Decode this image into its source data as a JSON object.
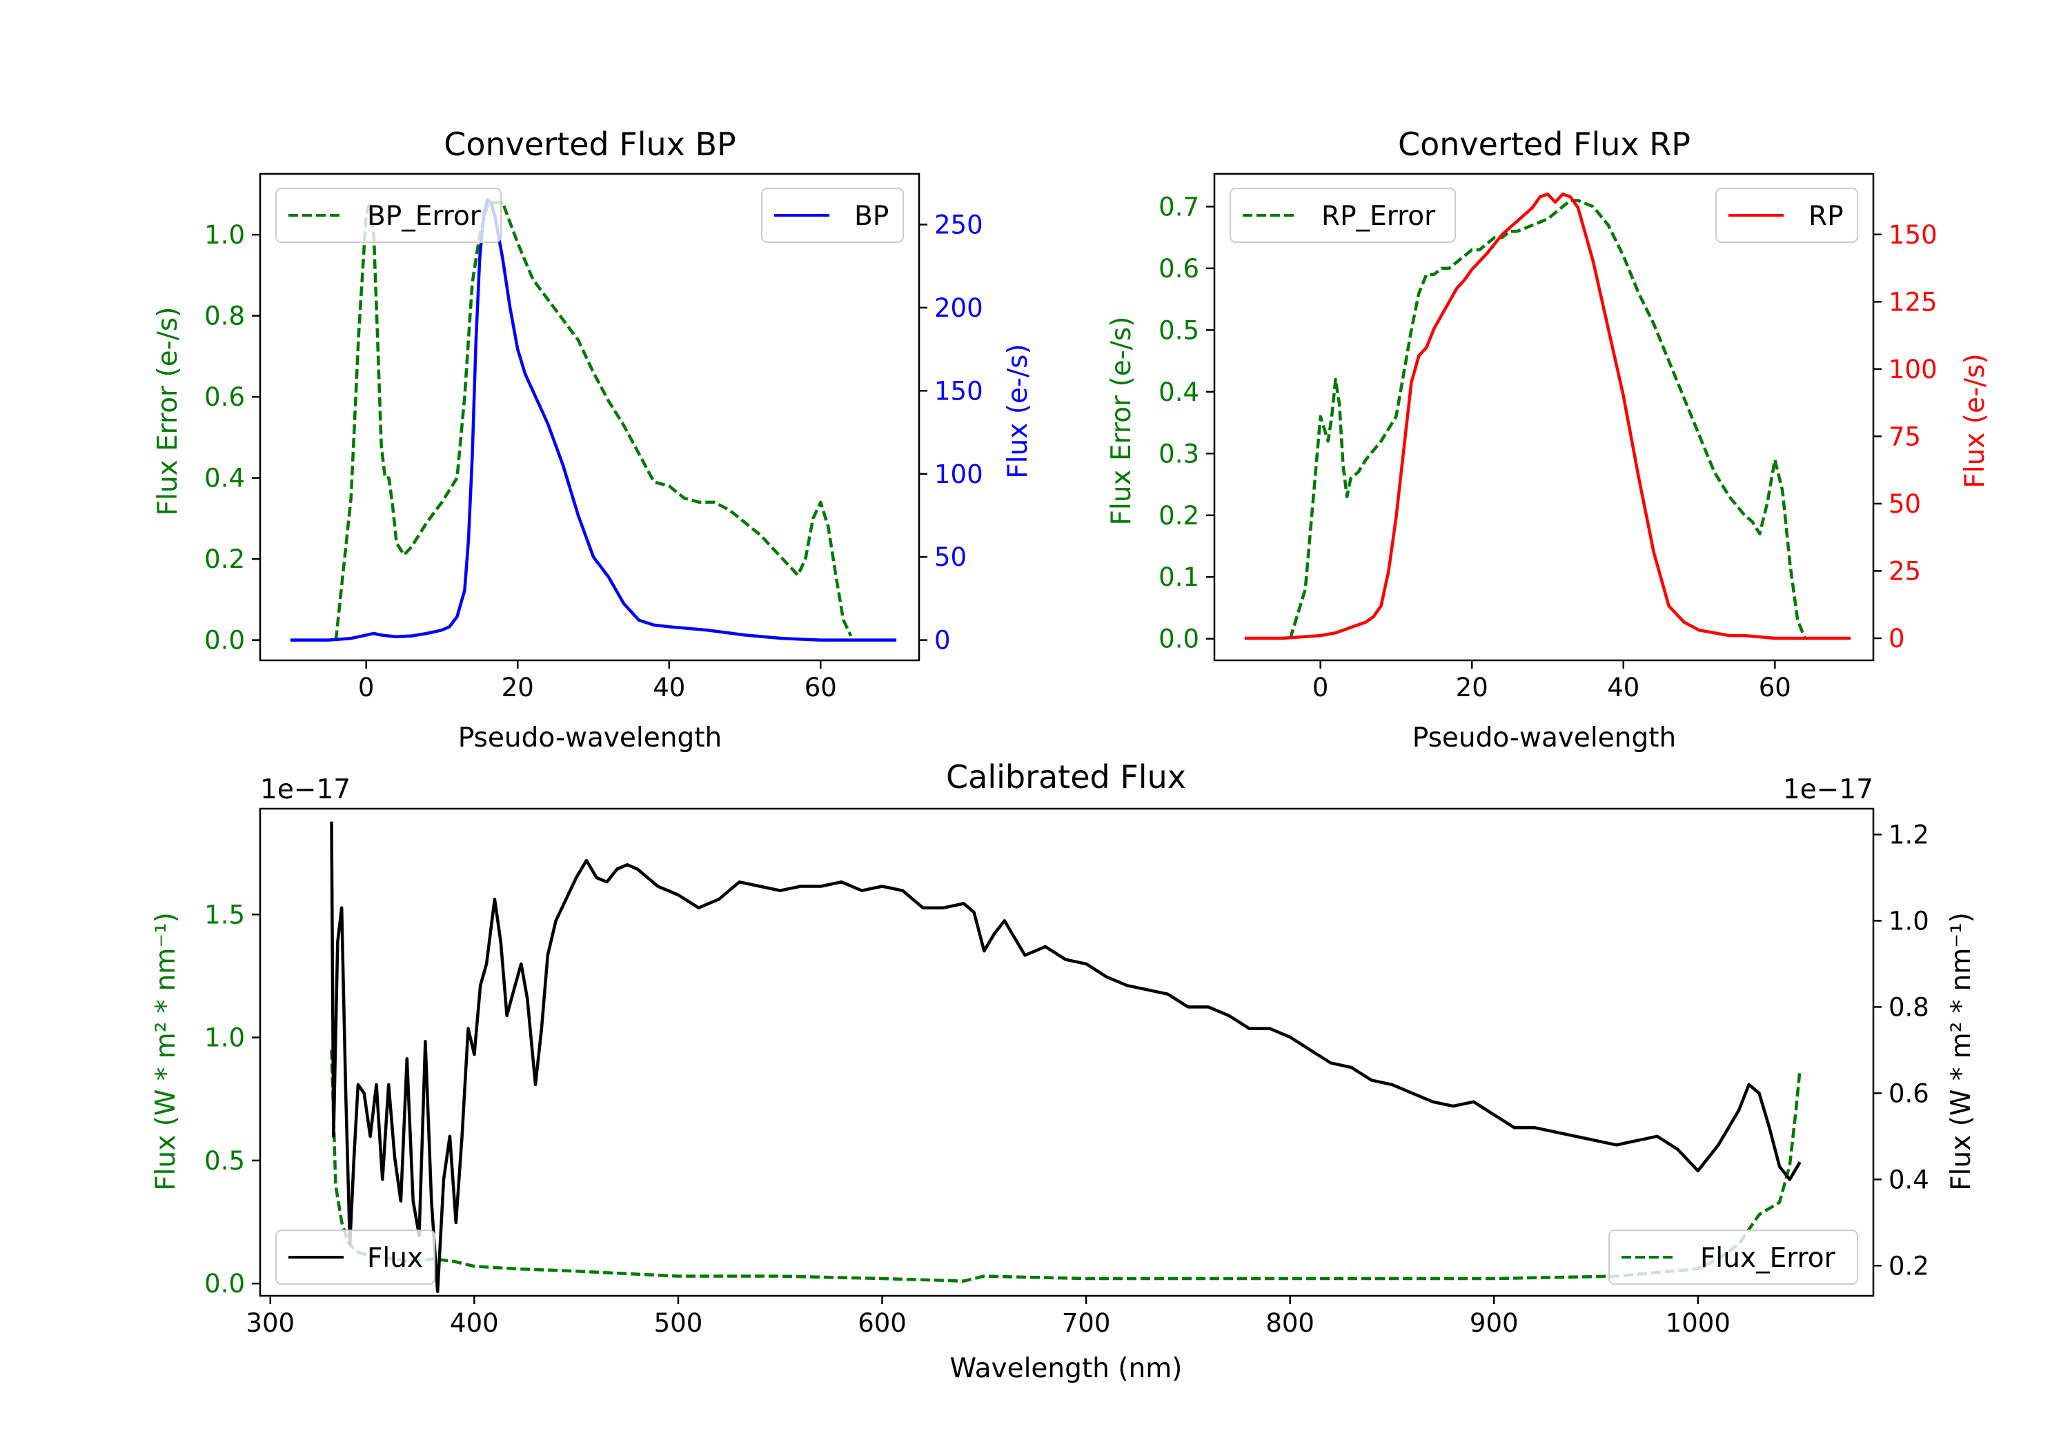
{
  "colors": {
    "error_green": "#007a00",
    "bp_blue": "#0000ff",
    "rp_red": "#ff0000",
    "flux_black": "#000000",
    "axis_black": "#000000",
    "background": "#ffffff"
  },
  "chart_data": [
    {
      "id": "bp",
      "type": "line",
      "title": "Converted Flux BP",
      "xlabel": "Pseudo-wavelength",
      "ylabel_left": "Flux Error (e-/s)",
      "ylabel_right": "Flux (e-/s)",
      "xlim": [
        -14,
        73
      ],
      "ylim_left": [
        -0.05,
        1.15
      ],
      "ylim_right": [
        -12.2,
        280.5
      ],
      "xticks": [
        0,
        20,
        40,
        60
      ],
      "yticks_left": [
        0.0,
        0.2,
        0.4,
        0.6,
        0.8,
        1.0
      ],
      "yticks_right": [
        0,
        50,
        100,
        150,
        200,
        250
      ],
      "legend_left": {
        "label": "BP_Error",
        "placement": "upper left"
      },
      "legend_right": {
        "label": "BP",
        "placement": "upper right"
      },
      "series": [
        {
          "name": "BP_Error",
          "axis": "left",
          "style": "dashed",
          "color": "#007a00",
          "x": [
            -4,
            -2,
            -1,
            0,
            0.5,
            1,
            1.5,
            2,
            2.5,
            3,
            3.5,
            4,
            5,
            6,
            8,
            10,
            12,
            13,
            14,
            15,
            16,
            17,
            18,
            19,
            20,
            22,
            24,
            26,
            28,
            30,
            32,
            34,
            36,
            38,
            40,
            42,
            44,
            46,
            48,
            50,
            52,
            54,
            56,
            57,
            58,
            59,
            60,
            61,
            62,
            63,
            64
          ],
          "y": [
            0.0,
            0.35,
            0.75,
            1.05,
            1.08,
            1.0,
            0.75,
            0.48,
            0.4,
            0.4,
            0.33,
            0.24,
            0.21,
            0.23,
            0.29,
            0.34,
            0.4,
            0.6,
            0.88,
            1.0,
            1.07,
            1.08,
            1.08,
            1.03,
            0.98,
            0.89,
            0.84,
            0.79,
            0.74,
            0.66,
            0.59,
            0.53,
            0.46,
            0.39,
            0.38,
            0.35,
            0.34,
            0.34,
            0.32,
            0.29,
            0.26,
            0.22,
            0.18,
            0.16,
            0.2,
            0.3,
            0.34,
            0.28,
            0.16,
            0.05,
            0.01
          ]
        },
        {
          "name": "BP",
          "axis": "right",
          "style": "solid",
          "color": "#0000ff",
          "x": [
            -10,
            -5,
            -2,
            0,
            1,
            2,
            3,
            4,
            6,
            8,
            10,
            11,
            12,
            13,
            13.5,
            14,
            14.5,
            15,
            15.5,
            16,
            16.5,
            17,
            18,
            19,
            20,
            21,
            22,
            24,
            26,
            28,
            30,
            32,
            34,
            36,
            38,
            40,
            45,
            50,
            55,
            60,
            65,
            70
          ],
          "y": [
            0,
            0,
            1,
            3,
            4,
            3,
            2.5,
            2,
            2.5,
            4,
            6,
            8,
            14,
            30,
            60,
            110,
            180,
            230,
            255,
            265,
            263,
            255,
            230,
            200,
            175,
            160,
            150,
            130,
            105,
            75,
            50,
            38,
            22,
            12,
            9,
            8,
            6,
            3,
            1,
            0,
            0,
            0
          ]
        }
      ]
    },
    {
      "id": "rp",
      "type": "line",
      "title": "Converted Flux RP",
      "xlabel": "Pseudo-wavelength",
      "ylabel_left": "Flux Error (e-/s)",
      "ylabel_right": "Flux (e-/s)",
      "xlim": [
        -14,
        73
      ],
      "ylim_left": [
        -0.035,
        0.753
      ],
      "ylim_right": [
        -8.2,
        172.5
      ],
      "xticks": [
        0,
        20,
        40,
        60
      ],
      "yticks_left": [
        0.0,
        0.1,
        0.2,
        0.3,
        0.4,
        0.5,
        0.6,
        0.7
      ],
      "yticks_right": [
        0,
        25,
        50,
        75,
        100,
        125,
        150
      ],
      "legend_left": {
        "label": "RP_Error",
        "placement": "upper left"
      },
      "legend_right": {
        "label": "RP",
        "placement": "upper right"
      },
      "series": [
        {
          "name": "RP_Error",
          "axis": "left",
          "style": "dashed",
          "color": "#007a00",
          "x": [
            -4,
            -2,
            -1,
            0,
            0.5,
            1,
            1.5,
            2,
            2.5,
            3,
            3.5,
            4,
            5,
            6,
            8,
            10,
            11,
            12,
            13,
            14,
            15,
            16,
            17,
            18,
            19,
            20,
            21,
            22,
            23,
            24,
            25,
            26,
            28,
            30,
            31,
            32,
            33,
            34,
            36,
            38,
            40,
            42,
            44,
            46,
            48,
            50,
            52,
            54,
            56,
            57,
            58,
            59,
            60,
            61,
            62,
            63,
            64
          ],
          "y": [
            0.0,
            0.08,
            0.22,
            0.36,
            0.34,
            0.32,
            0.36,
            0.42,
            0.38,
            0.28,
            0.23,
            0.26,
            0.27,
            0.29,
            0.32,
            0.36,
            0.43,
            0.5,
            0.56,
            0.59,
            0.59,
            0.6,
            0.6,
            0.61,
            0.62,
            0.63,
            0.63,
            0.64,
            0.65,
            0.65,
            0.66,
            0.66,
            0.67,
            0.68,
            0.69,
            0.7,
            0.71,
            0.71,
            0.7,
            0.67,
            0.62,
            0.56,
            0.51,
            0.45,
            0.39,
            0.33,
            0.27,
            0.23,
            0.2,
            0.19,
            0.17,
            0.22,
            0.29,
            0.24,
            0.12,
            0.03,
            0.0
          ]
        },
        {
          "name": "RP",
          "axis": "right",
          "style": "solid",
          "color": "#ff0000",
          "x": [
            -10,
            -5,
            0,
            2,
            4,
            6,
            7,
            8,
            9,
            10,
            11,
            12,
            12.5,
            13,
            14,
            15,
            16,
            17,
            18,
            19,
            20,
            22,
            24,
            26,
            28,
            29,
            30,
            31,
            32,
            33,
            34,
            35,
            36,
            38,
            40,
            42,
            44,
            46,
            48,
            50,
            52,
            54,
            56,
            60,
            65,
            70
          ],
          "y": [
            0,
            0,
            1,
            2,
            4,
            6,
            8,
            12,
            25,
            45,
            70,
            95,
            100,
            105,
            108,
            115,
            120,
            125,
            130,
            133,
            137,
            143,
            150,
            155,
            160,
            164,
            165,
            162,
            165,
            164,
            160,
            150,
            140,
            115,
            90,
            60,
            32,
            12,
            6,
            3,
            2,
            1,
            1,
            0,
            0,
            0
          ]
        }
      ]
    },
    {
      "id": "calibrated",
      "type": "line",
      "title": "Calibrated Flux",
      "xlabel": "Wavelength (nm)",
      "ylabel_left": "Flux (W * m² * nm⁻¹)",
      "ylabel_right": "Flux (W * m² * nm⁻¹)",
      "offset_left": "1e−17",
      "offset_right": "1e−17",
      "xlim": [
        295,
        1086
      ],
      "ylim_left": [
        -0.05,
        1.93
      ],
      "ylim_right": [
        0.13,
        1.26
      ],
      "xticks": [
        300,
        400,
        500,
        600,
        700,
        800,
        900,
        1000
      ],
      "yticks_left": [
        0.0,
        0.5,
        1.0,
        1.5
      ],
      "yticks_right": [
        0.2,
        0.4,
        0.6,
        0.8,
        1.0,
        1.2
      ],
      "legend_left": {
        "label": "Flux",
        "placement": "lower left"
      },
      "legend_right": {
        "label": "Flux_Error",
        "placement": "lower right"
      },
      "series": [
        {
          "name": "Flux_Error",
          "axis": "left",
          "style": "dashed",
          "color": "#007a00",
          "x": [
            330,
            332,
            335,
            338,
            342,
            350,
            360,
            370,
            380,
            390,
            400,
            420,
            450,
            500,
            550,
            600,
            640,
            650,
            700,
            800,
            900,
            960,
            1000,
            1010,
            1020,
            1030,
            1040,
            1045,
            1048,
            1050
          ],
          "y": [
            0.95,
            0.4,
            0.25,
            0.17,
            0.13,
            0.11,
            0.1,
            0.09,
            0.1,
            0.09,
            0.07,
            0.06,
            0.05,
            0.03,
            0.03,
            0.02,
            0.01,
            0.03,
            0.02,
            0.02,
            0.02,
            0.03,
            0.06,
            0.1,
            0.16,
            0.28,
            0.33,
            0.48,
            0.7,
            0.87
          ]
        },
        {
          "name": "Flux",
          "axis": "right",
          "style": "solid",
          "color": "#000000",
          "x": [
            330,
            331,
            333,
            335,
            337,
            339,
            341,
            343,
            346,
            349,
            352,
            355,
            358,
            361,
            364,
            367,
            370,
            373,
            376,
            379,
            382,
            385,
            388,
            391,
            394,
            397,
            400,
            403,
            406,
            410,
            413,
            416,
            420,
            423,
            426,
            430,
            433,
            436,
            440,
            445,
            450,
            455,
            460,
            465,
            470,
            475,
            480,
            490,
            500,
            510,
            520,
            530,
            540,
            550,
            560,
            570,
            580,
            590,
            600,
            610,
            620,
            630,
            640,
            645,
            650,
            655,
            660,
            665,
            670,
            680,
            690,
            700,
            710,
            720,
            730,
            740,
            750,
            760,
            770,
            780,
            790,
            800,
            810,
            820,
            830,
            840,
            850,
            860,
            870,
            880,
            890,
            900,
            910,
            920,
            930,
            940,
            950,
            960,
            970,
            980,
            990,
            1000,
            1010,
            1020,
            1025,
            1030,
            1035,
            1040,
            1045,
            1050
          ],
          "y": [
            1.23,
            0.5,
            0.95,
            1.03,
            0.6,
            0.25,
            0.45,
            0.62,
            0.6,
            0.5,
            0.62,
            0.4,
            0.62,
            0.45,
            0.35,
            0.68,
            0.35,
            0.27,
            0.72,
            0.35,
            0.14,
            0.4,
            0.5,
            0.3,
            0.5,
            0.75,
            0.69,
            0.85,
            0.9,
            1.05,
            0.95,
            0.78,
            0.85,
            0.9,
            0.82,
            0.62,
            0.75,
            0.92,
            1.0,
            1.05,
            1.1,
            1.14,
            1.1,
            1.09,
            1.12,
            1.13,
            1.12,
            1.08,
            1.06,
            1.03,
            1.05,
            1.09,
            1.08,
            1.07,
            1.08,
            1.08,
            1.09,
            1.07,
            1.08,
            1.07,
            1.03,
            1.03,
            1.04,
            1.02,
            0.93,
            0.97,
            1.0,
            0.96,
            0.92,
            0.94,
            0.91,
            0.9,
            0.87,
            0.85,
            0.84,
            0.83,
            0.8,
            0.8,
            0.78,
            0.75,
            0.75,
            0.73,
            0.7,
            0.67,
            0.66,
            0.63,
            0.62,
            0.6,
            0.58,
            0.57,
            0.58,
            0.55,
            0.52,
            0.52,
            0.51,
            0.5,
            0.49,
            0.48,
            0.49,
            0.5,
            0.47,
            0.42,
            0.48,
            0.56,
            0.62,
            0.6,
            0.52,
            0.43,
            0.4,
            0.44
          ]
        }
      ]
    }
  ]
}
